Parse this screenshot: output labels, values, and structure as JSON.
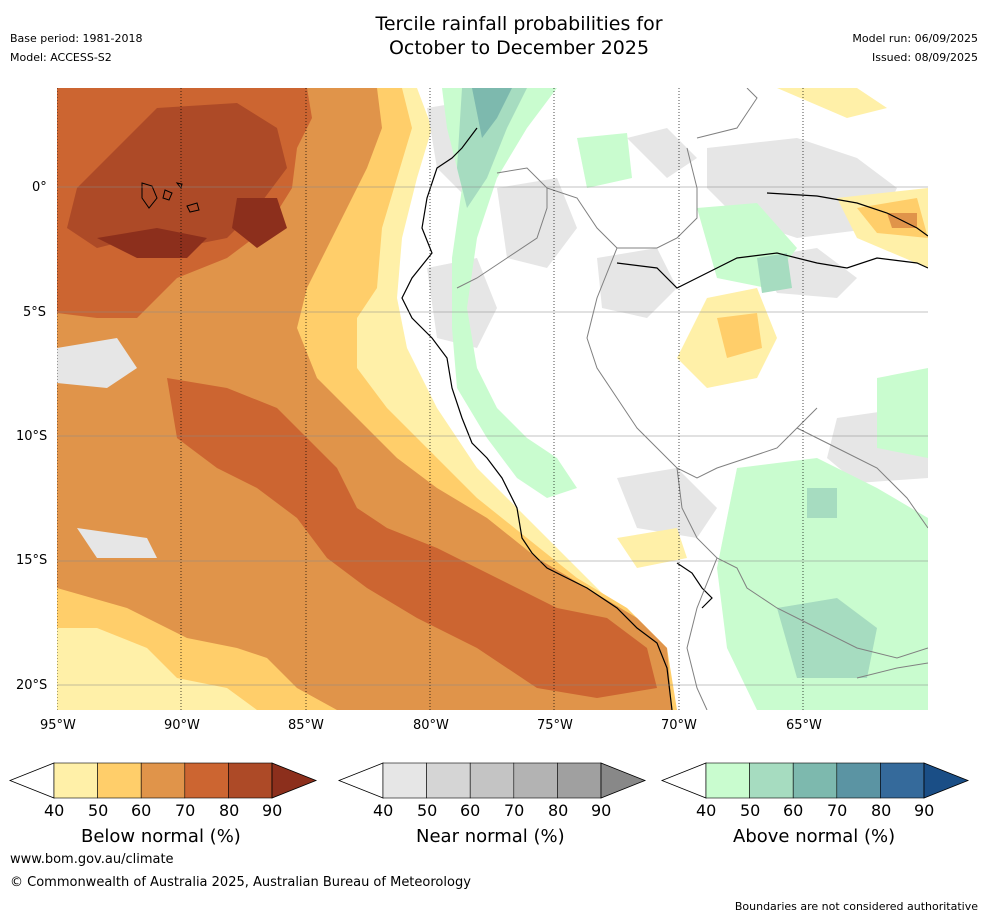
{
  "header": {
    "title_line1": "Tercile rainfall probabilities for",
    "title_line2": "October to December 2025",
    "base_period": "Base period: 1981-2018",
    "model": "Model: ACCESS-S2",
    "model_run": "Model run: 06/09/2025",
    "issued": "Issued: 08/09/2025"
  },
  "map": {
    "lat_labels": [
      "0°",
      "5°S",
      "10°S",
      "15°S",
      "20°S"
    ],
    "lon_labels": [
      "95°W",
      "90°W",
      "85°W",
      "80°W",
      "75°W",
      "70°W",
      "65°W"
    ],
    "extent": {
      "west": -95,
      "east": -60,
      "north": 4,
      "south": -21
    }
  },
  "colorbars": [
    {
      "title": "Below normal (%)",
      "ticks": [
        "40",
        "50",
        "60",
        "70",
        "80",
        "90"
      ],
      "colors": [
        "#ffffff",
        "#fff0a8",
        "#ffce6a",
        "#e0944a",
        "#cc6531",
        "#ad4a27",
        "#8c2f1c"
      ]
    },
    {
      "title": "Near normal (%)",
      "ticks": [
        "40",
        "50",
        "60",
        "70",
        "80",
        "90"
      ],
      "colors": [
        "#ffffff",
        "#e6e6e6",
        "#d5d5d5",
        "#c4c4c4",
        "#b3b3b3",
        "#a0a0a0",
        "#888888"
      ]
    },
    {
      "title": "Above normal (%)",
      "ticks": [
        "40",
        "50",
        "60",
        "70",
        "80",
        "90"
      ],
      "colors": [
        "#ffffff",
        "#c9fccf",
        "#a6dcc0",
        "#7db9ae",
        "#5b94a3",
        "#356a9b",
        "#1a4e86"
      ]
    }
  ],
  "footer": {
    "url": "www.bom.gov.au/climate",
    "copyright": "© Commonwealth of Australia 2025, Australian Bureau of Meteorology",
    "disclaimer": "Boundaries are not considered authoritative"
  }
}
